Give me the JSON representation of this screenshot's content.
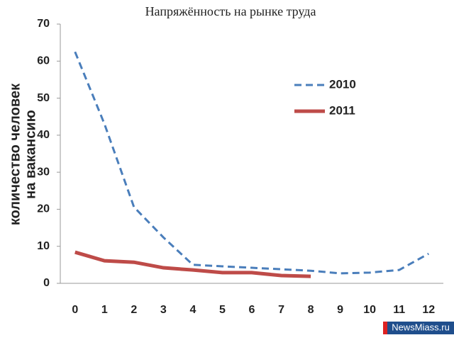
{
  "chart_data": {
    "type": "line",
    "title": "Напряжённость на рынке труда",
    "y_label": [
      "количество человек",
      "на вакансию"
    ],
    "x": [
      0,
      1,
      2,
      3,
      4,
      5,
      6,
      7,
      8,
      9,
      10,
      11,
      12
    ],
    "series": [
      {
        "name": "2010",
        "color": "#4a7ebb",
        "dash": true,
        "values": [
          62.5,
          43,
          20.6,
          12.4,
          5,
          4.6,
          4.2,
          3.8,
          3.4,
          2.7,
          2.9,
          3.6,
          8
        ]
      },
      {
        "name": "2011",
        "color": "#be4b48",
        "dash": false,
        "values": [
          8.4,
          6.1,
          5.7,
          4.2,
          3.6,
          2.9,
          2.9,
          2.1,
          1.9,
          null,
          null,
          null,
          null
        ]
      }
    ],
    "xlim": [
      -0.5,
      12.5
    ],
    "xticks": [
      0,
      1,
      2,
      3,
      4,
      5,
      6,
      7,
      8,
      9,
      10,
      11,
      12
    ],
    "ylim": [
      0,
      70
    ],
    "yticks": [
      0,
      10,
      20,
      30,
      40,
      50,
      60,
      70
    ],
    "grid": false,
    "legend": "right"
  },
  "watermark": "NewsMiass.ru"
}
